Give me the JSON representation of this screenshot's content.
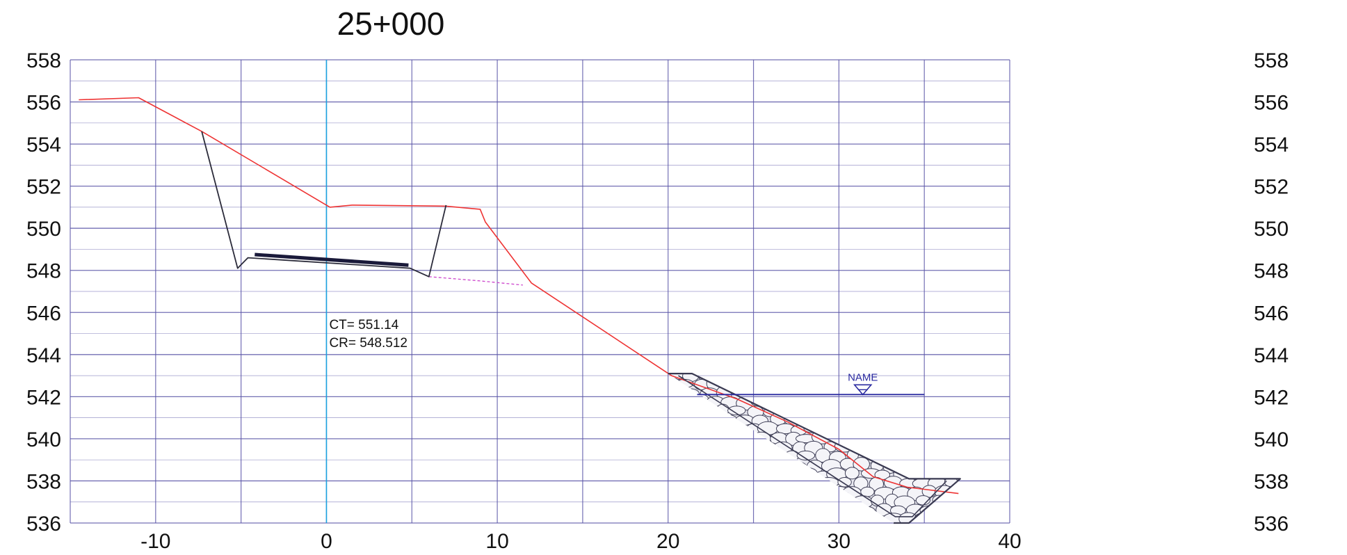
{
  "title": "25+000",
  "annotations": {
    "ct": "CT= 551.14",
    "cr": "CR= 548.512",
    "water_level_label": "NAME"
  },
  "colors": {
    "grid": "#5b56a8",
    "centerline": "#1ca3e0",
    "ground": "#ee3333",
    "subgrade": "#cc44cc",
    "section": "#2b2b3a",
    "riprap": "#3a3a52",
    "water": "#2a2aa0"
  },
  "chart_data": {
    "type": "line",
    "title": "25+000",
    "xlabel": "",
    "ylabel": "",
    "xlim": [
      -15,
      40
    ],
    "ylim": [
      536,
      558
    ],
    "x_ticks": [
      -10,
      0,
      10,
      20,
      30,
      40
    ],
    "x_tick_labels": [
      "-10",
      "0",
      "10",
      "20",
      "30",
      "40"
    ],
    "x_grid": [
      -15,
      -10,
      -5,
      0,
      5,
      10,
      15,
      20,
      25,
      30,
      35,
      40
    ],
    "y_ticks": [
      536,
      538,
      540,
      542,
      544,
      546,
      548,
      550,
      552,
      554,
      556,
      558
    ],
    "y_tick_labels": [
      "536",
      "538",
      "540",
      "542",
      "544",
      "546",
      "548",
      "550",
      "552",
      "554",
      "556",
      "558"
    ],
    "grid": true,
    "series": [
      {
        "kind": "ground",
        "x": [
          -14.5,
          -11,
          -7.3,
          0.2,
          1.5,
          7,
          9,
          9.3,
          12,
          20.2,
          24,
          27,
          30,
          32,
          34,
          37
        ],
        "y": [
          556.1,
          556.2,
          554.6,
          551.0,
          551.1,
          551.05,
          550.9,
          550.3,
          547.4,
          543.0,
          541.9,
          540.8,
          539.5,
          538.2,
          537.7,
          537.4
        ]
      },
      {
        "kind": "subgrade",
        "x": [
          6,
          9,
          11.5
        ],
        "y": [
          547.7,
          547.5,
          547.3
        ]
      },
      {
        "kind": "cut-section",
        "x": [
          -7.3,
          -5.2,
          -4.6,
          4.9,
          6,
          7
        ],
        "y": [
          554.6,
          548.1,
          548.6,
          548.1,
          547.7,
          551.1
        ]
      },
      {
        "kind": "pavement",
        "x": [
          -4.2,
          4.8
        ],
        "y": [
          548.75,
          548.25
        ]
      },
      {
        "kind": "riprap-outer",
        "x": [
          20,
          21.4,
          34.1,
          37.1,
          34.1,
          33.2
        ],
        "y": [
          543.1,
          543.1,
          538.1,
          538.1,
          536.0,
          536.0
        ]
      },
      {
        "kind": "riprap-inner",
        "x": [
          20.6,
          33.3,
          34.3,
          36.3
        ],
        "y": [
          543.0,
          536.3,
          536.3,
          538.0
        ]
      },
      {
        "kind": "water-level",
        "x": [
          21.7,
          35
        ],
        "y": [
          542.1,
          542.1
        ]
      }
    ],
    "centerline_x": 0,
    "water_marker_x": 31.4
  }
}
